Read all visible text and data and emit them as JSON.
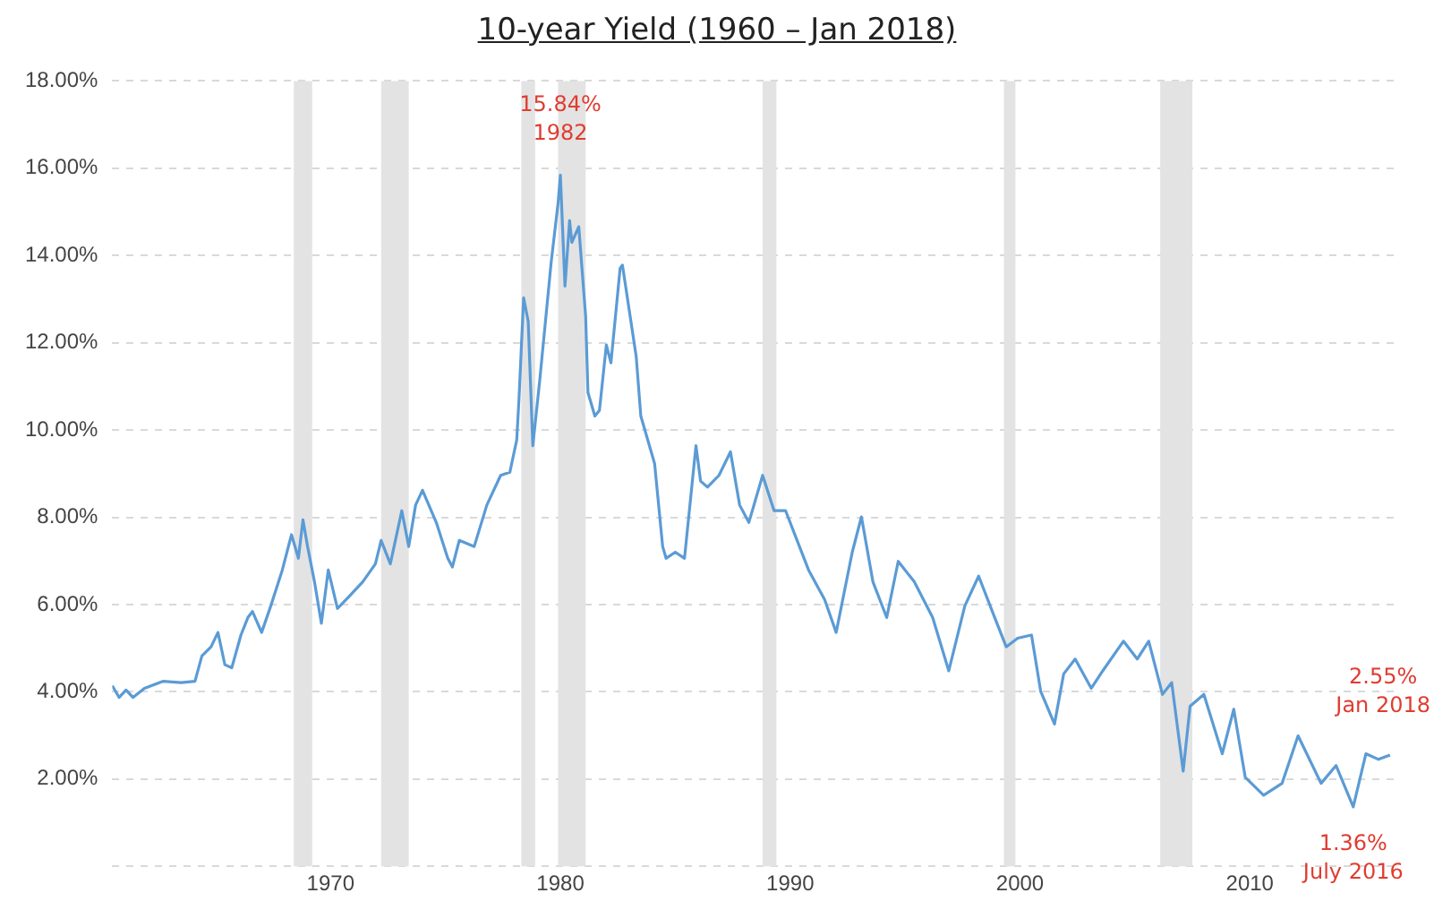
{
  "chart_data": {
    "type": "line",
    "title": "10-year Yield  (1960 – Jan 2018)",
    "series": [
      {
        "color": "#5b9bd5",
        "x": [
          1960.5,
          1960.8,
          1961.1,
          1961.4,
          1961.9,
          1962.7,
          1963.5,
          1964.1,
          1964.4,
          1964.8,
          1965.1,
          1965.4,
          1965.7,
          1966.1,
          1966.4,
          1966.6,
          1967.0,
          1967.4,
          1967.9,
          1968.3,
          1968.6,
          1968.8,
          1969.0,
          1969.3,
          1969.6,
          1969.9,
          1970.3,
          1970.8,
          1971.4,
          1971.95,
          1972.2,
          1972.6,
          1973.1,
          1973.4,
          1973.7,
          1974.0,
          1974.6,
          1975.1,
          1975.3,
          1975.6,
          1976.25,
          1976.8,
          1977.4,
          1977.8,
          1978.1,
          1978.2,
          1978.4,
          1978.6,
          1978.8,
          1979.1,
          1979.4,
          1979.6,
          1979.9,
          1980.0,
          1980.2,
          1980.4,
          1980.5,
          1980.8,
          1981.1,
          1981.2,
          1981.5,
          1981.7,
          1982.0,
          1982.2,
          1982.6,
          1982.7,
          1983.3,
          1983.5,
          1984.1,
          1984.45,
          1984.6,
          1985.0,
          1985.4,
          1985.9,
          1986.1,
          1986.4,
          1986.9,
          1987.4,
          1987.8,
          1988.2,
          1988.8,
          1989.3,
          1989.8,
          1990.3,
          1990.8,
          1991.5,
          1992.0,
          1992.7,
          1993.1,
          1993.6,
          1994.2,
          1994.7,
          1995.4,
          1996.2,
          1996.9,
          1997.6,
          1998.2,
          1998.9,
          1999.4,
          1999.9,
          2000.5,
          2000.9,
          2001.5,
          2001.9,
          2002.4,
          2003.1,
          2003.6,
          2004.5,
          2005.1,
          2005.6,
          2006.2,
          2006.6,
          2007.1,
          2007.4,
          2008.0,
          2008.8,
          2009.3,
          2009.8,
          2010.6,
          2011.4,
          2012.1,
          2013.1,
          2013.75,
          2014.5,
          2015.05,
          2015.6,
          2016.1
        ],
        "values": [
          4.14,
          3.87,
          4.04,
          3.87,
          4.08,
          4.24,
          4.21,
          4.24,
          4.82,
          5.03,
          5.36,
          4.62,
          4.55,
          5.3,
          5.7,
          5.84,
          5.36,
          5.97,
          6.79,
          7.6,
          7.06,
          7.94,
          7.33,
          6.52,
          5.57,
          6.79,
          5.91,
          6.18,
          6.52,
          6.93,
          7.47,
          6.93,
          8.15,
          7.33,
          8.28,
          8.62,
          7.88,
          7.06,
          6.86,
          7.47,
          7.33,
          8.28,
          8.96,
          9.03,
          9.77,
          10.72,
          13.03,
          12.49,
          9.64,
          11.13,
          12.76,
          13.85,
          15.2,
          15.84,
          13.3,
          14.8,
          14.3,
          14.66,
          12.6,
          10.86,
          10.32,
          10.45,
          11.95,
          11.54,
          13.71,
          13.78,
          11.68,
          10.32,
          9.23,
          7.33,
          7.06,
          7.2,
          7.06,
          9.64,
          8.83,
          8.69,
          8.96,
          9.5,
          8.28,
          7.88,
          8.96,
          8.15,
          8.15,
          7.47,
          6.79,
          6.11,
          5.36,
          7.2,
          8.01,
          6.52,
          5.7,
          6.99,
          6.52,
          5.7,
          4.48,
          5.97,
          6.65,
          5.7,
          5.03,
          5.23,
          5.3,
          4.01,
          3.26,
          4.41,
          4.75,
          4.08,
          4.48,
          5.16,
          4.75,
          5.16,
          3.94,
          4.21,
          2.18,
          3.67,
          3.94,
          2.58,
          3.6,
          2.04,
          1.63,
          1.9,
          2.99,
          1.9,
          2.31,
          1.36,
          2.58,
          2.45,
          2.55
        ]
      }
    ],
    "xlim": [
      1960.5,
      2016.3
    ],
    "xticks": [
      1970,
      1980,
      1990,
      2000,
      2010
    ],
    "ylim": [
      0,
      18
    ],
    "yticks": [
      {
        "value": 0,
        "label": null
      },
      {
        "value": 2,
        "label": "2.00%"
      },
      {
        "value": 4,
        "label": "4.00%"
      },
      {
        "value": 6,
        "label": "6.00%"
      },
      {
        "value": 8,
        "label": "8.00%"
      },
      {
        "value": 10,
        "label": "10.00%"
      },
      {
        "value": 12,
        "label": "12.00%"
      },
      {
        "value": 14,
        "label": "14.00%"
      },
      {
        "value": 16,
        "label": "16.00%"
      },
      {
        "value": 18,
        "label": "18.00%"
      }
    ],
    "grid": "y",
    "marker": "none",
    "line_style": "solid",
    "legend": false,
    "bands": [
      {
        "axis": "x",
        "from": 1968.4,
        "to": 1969.2,
        "color": "#e3e3e3"
      },
      {
        "axis": "x",
        "from": 1972.2,
        "to": 1973.4,
        "color": "#e3e3e3"
      },
      {
        "axis": "x",
        "from": 1978.3,
        "to": 1978.9,
        "color": "#e3e3e3"
      },
      {
        "axis": "x",
        "from": 1979.9,
        "to": 1981.1,
        "color": "#e3e3e3"
      },
      {
        "axis": "x",
        "from": 1988.8,
        "to": 1989.4,
        "color": "#e3e3e3"
      },
      {
        "axis": "x",
        "from": 1999.3,
        "to": 1999.8,
        "color": "#e3e3e3"
      },
      {
        "axis": "x",
        "from": 2006.1,
        "to": 2007.5,
        "color": "#e3e3e3"
      }
    ],
    "annotations": [
      {
        "text": "15.84%\n1982",
        "x": 1980.0,
        "y": 15.84
      },
      {
        "text": "2.55%\nJan 2018",
        "x": 2016.1,
        "y": 2.55
      },
      {
        "text": "1.36%\nJuly 2016",
        "x": 2014.5,
        "y": 1.36
      }
    ]
  }
}
